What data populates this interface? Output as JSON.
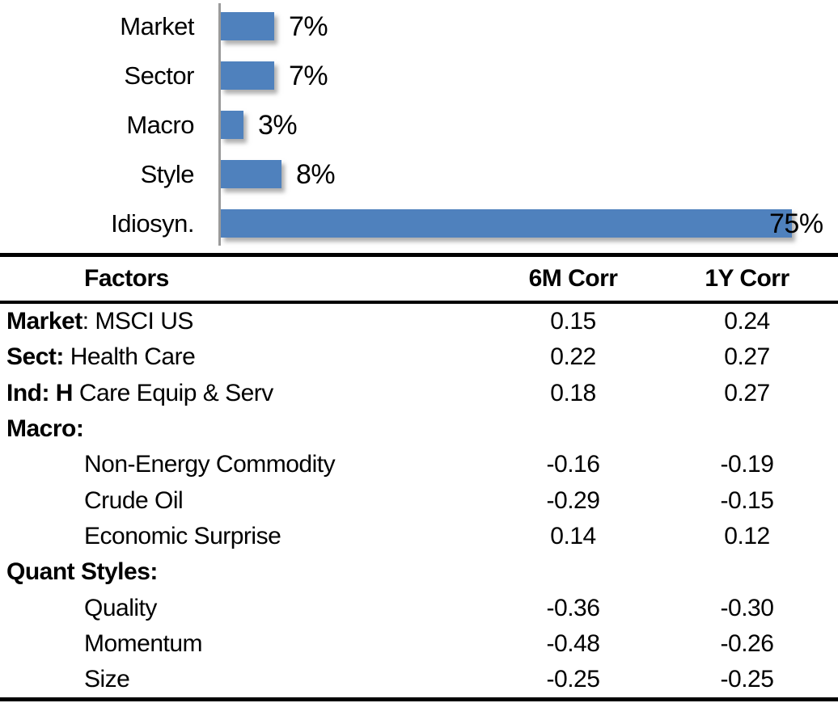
{
  "chart_data": [
    {
      "type": "bar",
      "orientation": "horizontal",
      "title": "",
      "categories": [
        "Market",
        "Sector",
        "Macro",
        "Style",
        "Idiosyn."
      ],
      "values": [
        7,
        7,
        3,
        8,
        75
      ],
      "data_labels": [
        "7%",
        "7%",
        "3%",
        "8%",
        "75%"
      ],
      "xlim": [
        0,
        75
      ],
      "grid": false,
      "legend": "none",
      "bar_color": "#4f81bd",
      "axis_color": "#9b9b9b"
    },
    {
      "type": "table",
      "columns": [
        "Factors",
        "6M Corr",
        "1Y Corr"
      ],
      "rows": [
        {
          "label_bold": "Market",
          "label_rest": ": MSCI US",
          "indent": false,
          "corr_6m": "0.15",
          "corr_1y": "0.24"
        },
        {
          "label_bold": "Sect:",
          "label_rest": " Health Care",
          "indent": false,
          "corr_6m": "0.22",
          "corr_1y": "0.27"
        },
        {
          "label_bold": "Ind: H",
          "label_rest": " Care Equip & Serv",
          "indent": false,
          "corr_6m": "0.18",
          "corr_1y": "0.27"
        },
        {
          "label_bold": "Macro:",
          "label_rest": "",
          "indent": false,
          "corr_6m": "",
          "corr_1y": ""
        },
        {
          "label_bold": "",
          "label_rest": "Non-Energy Commodity",
          "indent": true,
          "corr_6m": "-0.16",
          "corr_1y": "-0.19"
        },
        {
          "label_bold": "",
          "label_rest": "Crude Oil",
          "indent": true,
          "corr_6m": "-0.29",
          "corr_1y": "-0.15"
        },
        {
          "label_bold": "",
          "label_rest": "Economic Surprise",
          "indent": true,
          "corr_6m": "0.14",
          "corr_1y": "0.12"
        },
        {
          "label_bold": "Quant Styles:",
          "label_rest": "",
          "indent": false,
          "corr_6m": "",
          "corr_1y": ""
        },
        {
          "label_bold": "",
          "label_rest": "Quality",
          "indent": true,
          "corr_6m": "-0.36",
          "corr_1y": "-0.30"
        },
        {
          "label_bold": "",
          "label_rest": "Momentum",
          "indent": true,
          "corr_6m": "-0.48",
          "corr_1y": "-0.26"
        },
        {
          "label_bold": "",
          "label_rest": "Size",
          "indent": true,
          "corr_6m": "-0.25",
          "corr_1y": "-0.25"
        }
      ]
    }
  ]
}
